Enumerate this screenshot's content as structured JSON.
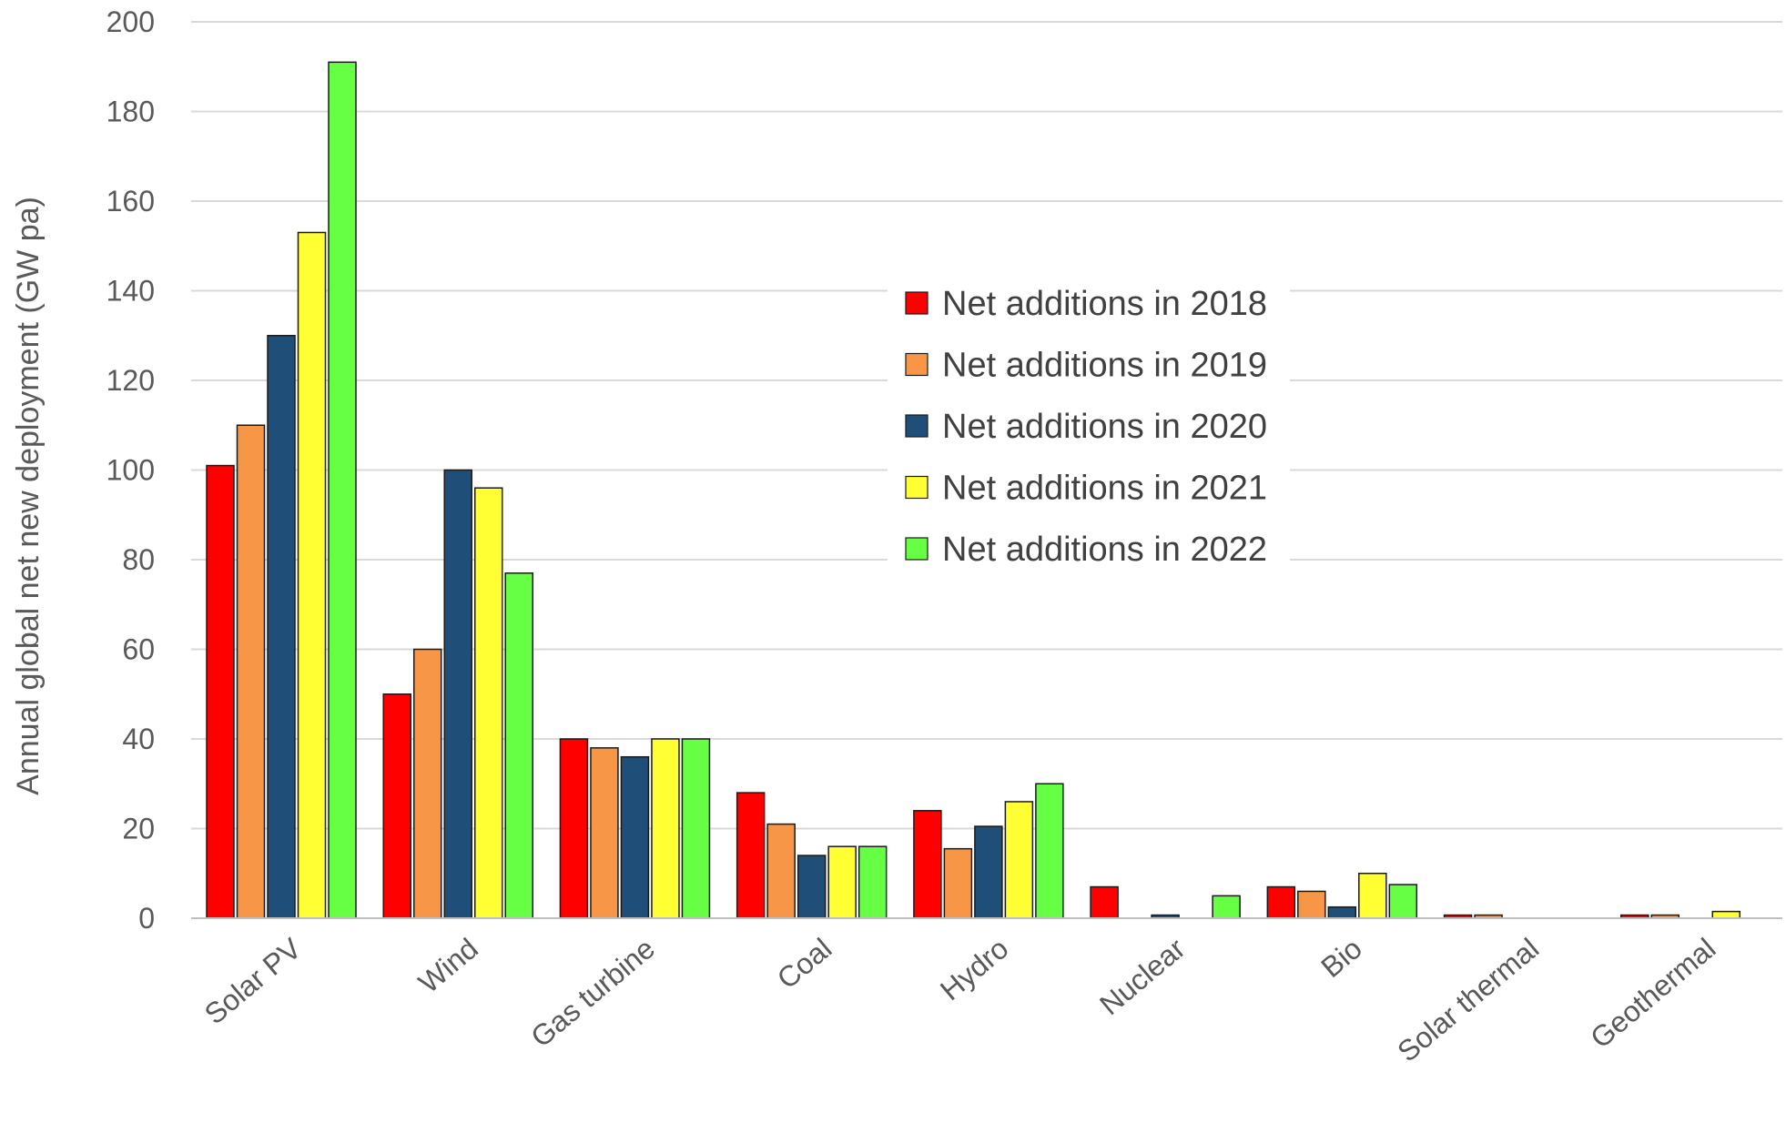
{
  "chart_data": {
    "type": "bar",
    "title": "",
    "xlabel": "",
    "ylabel": "Annual global net new deployment (GW pa)",
    "ylim": [
      0,
      200
    ],
    "yticks": [
      0,
      20,
      40,
      60,
      80,
      100,
      120,
      140,
      160,
      180,
      200
    ],
    "grid": true,
    "legend_position": "center-right",
    "categories": [
      "Solar PV",
      "Wind",
      "Gas turbine",
      "Coal",
      "Hydro",
      "Nuclear",
      "Bio",
      "Solar thermal",
      "Geothermal"
    ],
    "series": [
      {
        "name": "Net additions in 2018",
        "color": "#ff0000",
        "values": [
          101,
          50,
          40,
          28,
          24,
          7,
          7,
          0.7,
          0.7
        ]
      },
      {
        "name": "Net additions in 2019",
        "color": "#f79646",
        "values": [
          110,
          60,
          38,
          21,
          15.5,
          0,
          6,
          0.7,
          0.7
        ]
      },
      {
        "name": "Net additions in 2020",
        "color": "#1f4e79",
        "values": [
          130,
          100,
          36,
          14,
          20.5,
          0.7,
          2.5,
          0,
          0
        ]
      },
      {
        "name": "Net additions in 2021",
        "color": "#ffff33",
        "values": [
          153,
          96,
          40,
          16,
          26,
          0,
          10,
          0,
          1.5
        ]
      },
      {
        "name": "Net additions in 2022",
        "color": "#66ff44",
        "values": [
          191,
          77,
          40,
          16,
          30,
          5,
          7.5,
          0,
          0
        ]
      }
    ]
  }
}
